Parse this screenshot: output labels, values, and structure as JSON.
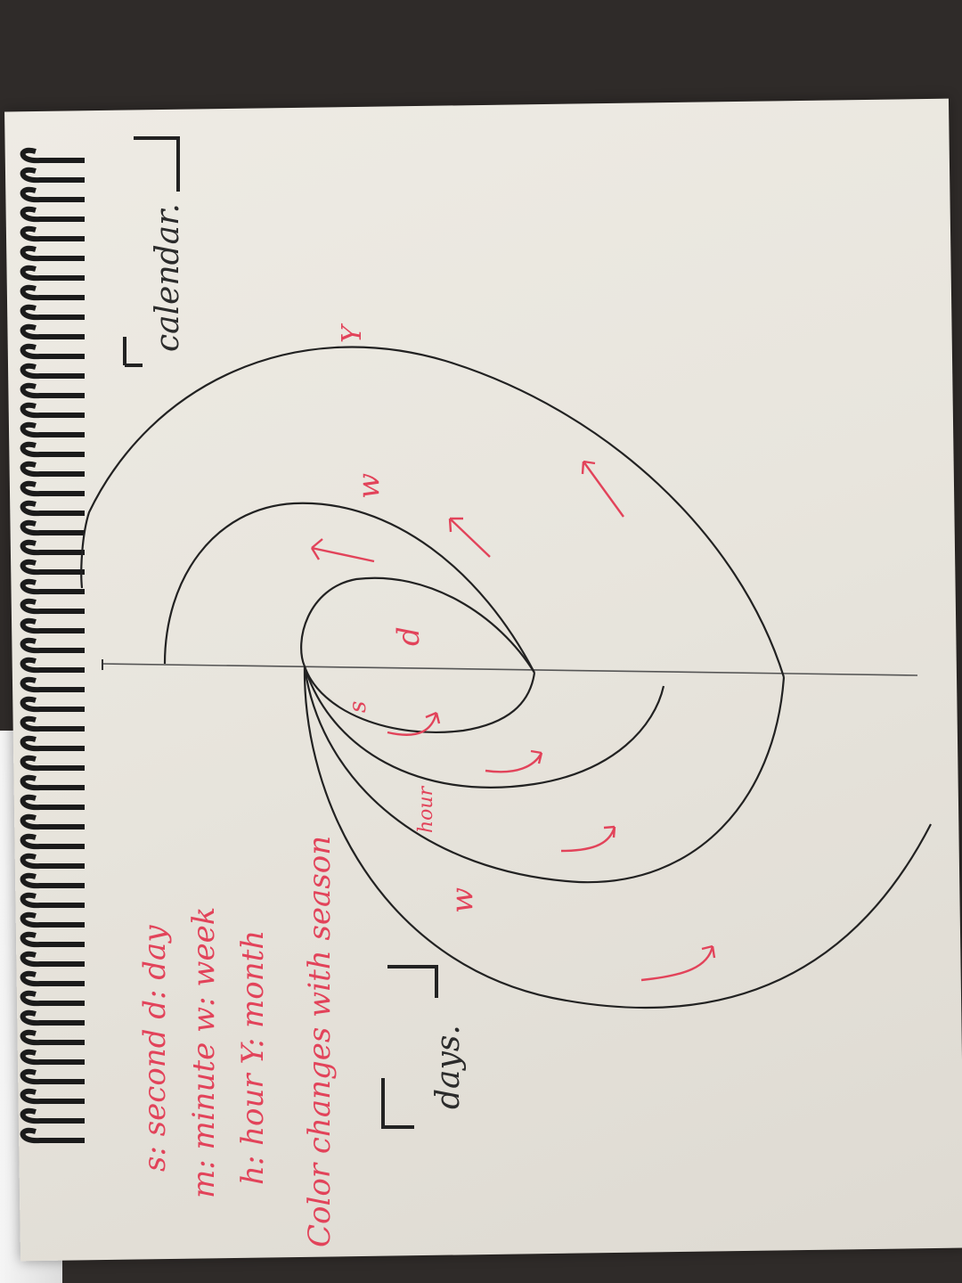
{
  "notebook": {
    "legend": {
      "line1": "s: second      d: day",
      "line2": "m: minute     w: week",
      "line3": "h: hour       Y: month",
      "line4": "Color changes with season"
    },
    "labels": {
      "calendar": "calendar.",
      "days": "days."
    },
    "spiral_marks": {
      "s": "s",
      "d": "d",
      "hour": "hour",
      "w_top": "w",
      "w_bottom": "w",
      "y": "Y"
    },
    "colors": {
      "ink": "#2b2b2b",
      "red_pen": "#e2435a",
      "paper": "#ebe8e1"
    }
  }
}
